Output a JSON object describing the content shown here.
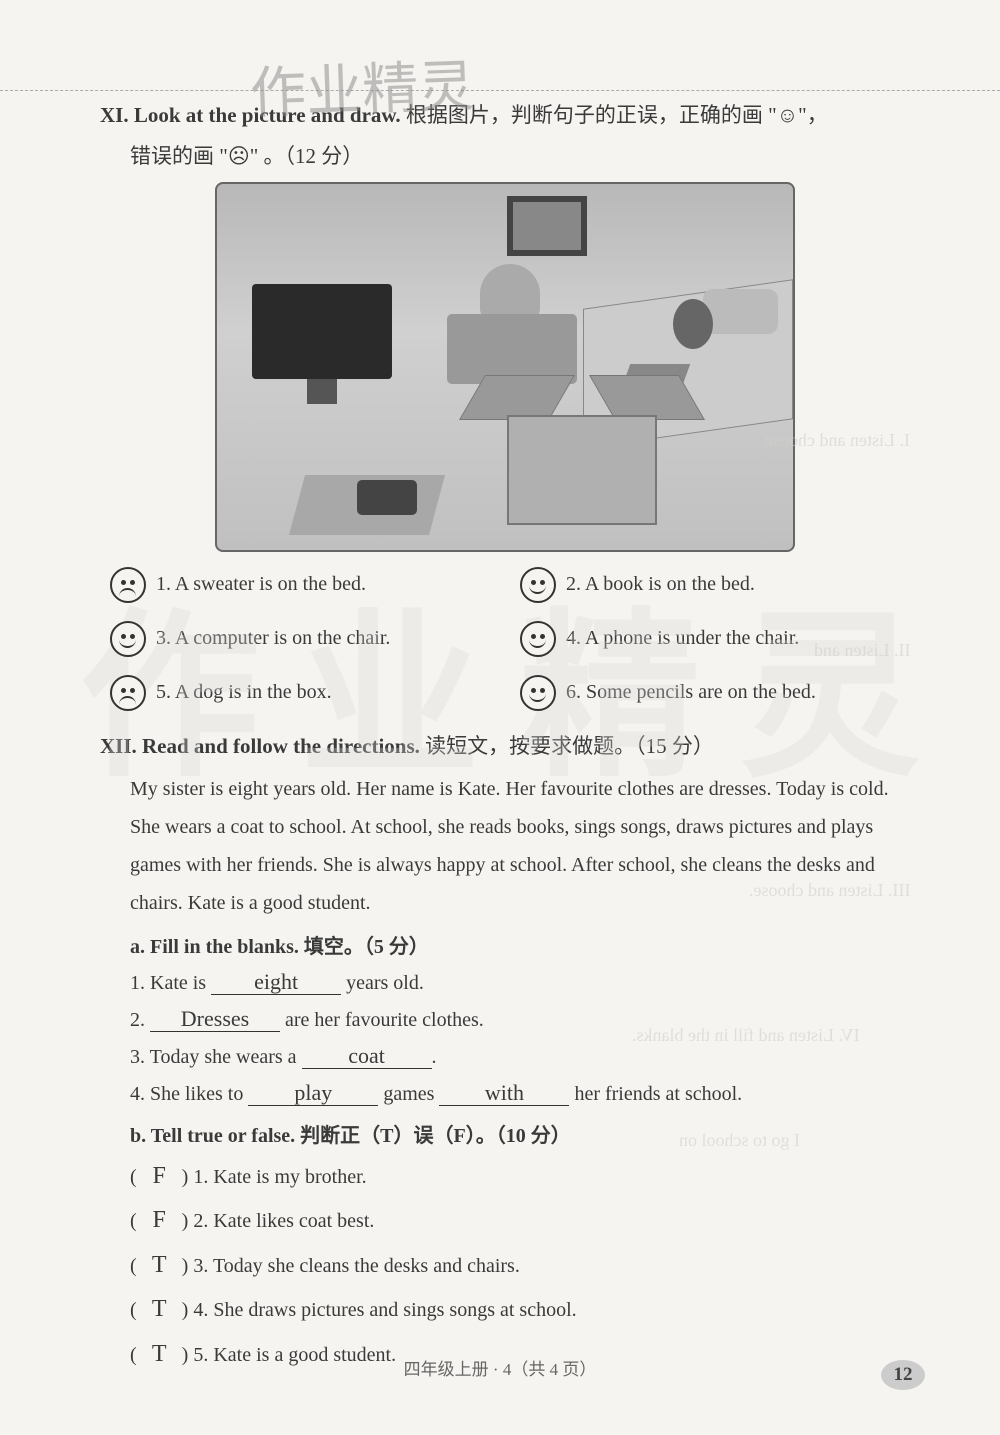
{
  "watermark_top": "作业精灵",
  "watermark_bg": "作业精灵",
  "section_xi": {
    "num": "XI.",
    "title_en": "Look at the picture and draw.",
    "title_ch": "根据图片，判断句子的正误，正确的画 \"☺\"，",
    "sub": "错误的画 \"☹\" 。（12 分）"
  },
  "tf_items": [
    {
      "n": "1.",
      "text": "A sweater is on the bed.",
      "face": "sad"
    },
    {
      "n": "2.",
      "text": "A book is on the bed.",
      "face": "happy"
    },
    {
      "n": "3.",
      "text": "A computer is on the chair.",
      "face": "happy"
    },
    {
      "n": "4.",
      "text": "A phone is under the chair.",
      "face": "happy"
    },
    {
      "n": "5.",
      "text": "A dog is in the box.",
      "face": "sad"
    },
    {
      "n": "6.",
      "text": "Some pencils are on the bed.",
      "face": "happy"
    }
  ],
  "section_xii": {
    "num": "XII.",
    "title_en": "Read and follow the directions.",
    "title_ch": "读短文，按要求做题。（15 分）"
  },
  "passage": "My sister is eight years old. Her name is Kate. Her favourite clothes are dresses. Today is cold. She wears a coat to school. At school, she reads books, sings songs, draws pictures and plays games with her friends. She is always happy at school. After school, she cleans the desks and chairs. Kate is a good student.",
  "subsection_a": "a. Fill in the blanks. 填空。（5 分）",
  "fill": [
    {
      "pre": "1. Kate is ",
      "ans": "eight",
      "post": " years old."
    },
    {
      "pre": "2. ",
      "ans": "Dresses",
      "post": " are her favourite clothes."
    },
    {
      "pre": "3. Today she wears a ",
      "ans": "coat",
      "post": "."
    },
    {
      "pre": "4. She likes to ",
      "ans": "play",
      "mid": " games ",
      "ans2": "with",
      "post": " her friends at school."
    }
  ],
  "subsection_b": "b. Tell true or false. 判断正（T）误（F）。（10 分）",
  "tf_lines": [
    {
      "ans": "F",
      "text": "1. Kate is my brother."
    },
    {
      "ans": "F",
      "text": "2. Kate likes coat best."
    },
    {
      "ans": "T",
      "text": "3. Today she cleans the desks and chairs."
    },
    {
      "ans": "T",
      "text": "4. She draws pictures and sings songs at school."
    },
    {
      "ans": "T",
      "text": "5. Kate is a good student."
    }
  ],
  "footer": "四年级上册 · 4（共 4 页）",
  "page_num": "12",
  "ghost": {
    "g1": "I. Listen and choose",
    "g2": "II. Listen and",
    "g3": "III. Listen and choose.",
    "g4": "IV. Listen and fill in the blanks.",
    "g5": "I go to school on"
  }
}
